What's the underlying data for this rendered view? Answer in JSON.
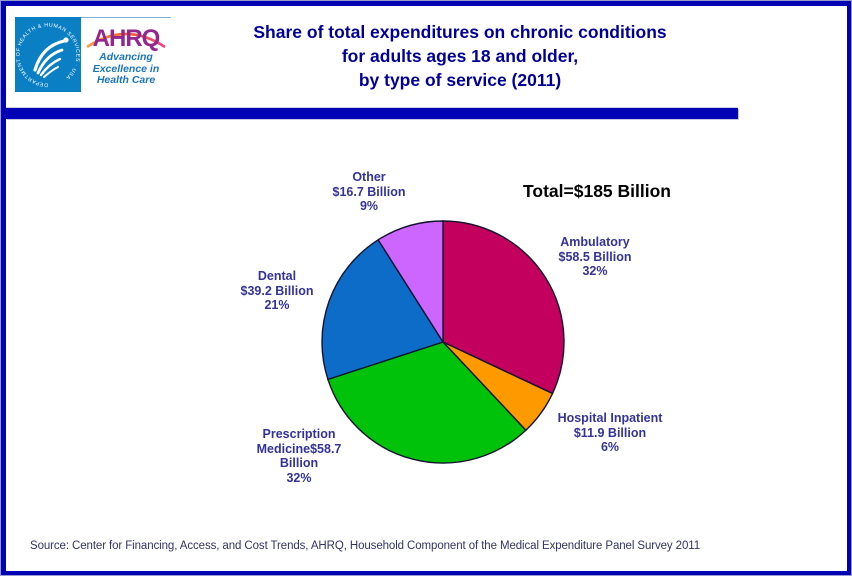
{
  "header": {
    "title_lines": [
      "Share of total expenditures on chronic conditions",
      "for adults ages 18 and older,",
      "by type of service (2011)"
    ],
    "logo": {
      "seal_text": "DEPARTMENT OF HEALTH & HUMAN SERVICES · USA",
      "acronym": "AHRQ",
      "tagline_lines": [
        "Advancing",
        "Excellence in",
        "Health Care"
      ]
    }
  },
  "chart_data": {
    "type": "pie",
    "title": "Share of total expenditures on chronic conditions for adults ages 18 and older, by type of service (2011)",
    "total_label": "Total=$185 Billion",
    "total_billions": 185,
    "start_angle": "top",
    "direction": "clockwise",
    "legend": "none (callout labels)",
    "slices": [
      {
        "label": "Ambulatory",
        "amount_label": "$58.5 Billion",
        "value_billions": 58.5,
        "percent": 32,
        "color": "#C4005E"
      },
      {
        "label": "Hospital Inpatient",
        "amount_label": "$11.9 Billion",
        "value_billions": 11.9,
        "percent": 6,
        "color": "#FF9900"
      },
      {
        "label": "Prescription Medicine",
        "amount_label": "$58.7 Billion",
        "value_billions": 58.7,
        "percent": 32,
        "color": "#00C20A"
      },
      {
        "label": "Dental",
        "amount_label": "$39.2 Billion",
        "value_billions": 39.2,
        "percent": 21,
        "color": "#0D6CC8"
      },
      {
        "label": "Other",
        "amount_label": "$16.7 Billion",
        "value_billions": 16.7,
        "percent": 9,
        "color": "#CC66FF"
      }
    ]
  },
  "callouts": {
    "other": {
      "lines": [
        "Other",
        "$16.7 Billion",
        "9%"
      ]
    },
    "ambulatory": {
      "lines": [
        "Ambulatory",
        "$58.5 Billion",
        "32%"
      ]
    },
    "dental": {
      "lines": [
        "Dental",
        "$39.2 Billion",
        "21%"
      ]
    },
    "hospital_inpatient": {
      "lines": [
        "Hospital Inpatient",
        "$11.9 Billion",
        "6%"
      ]
    },
    "prescription_medicine": {
      "lines": [
        "Prescription",
        "Medicine$58.7",
        "Billion",
        "32%"
      ]
    }
  },
  "footer": {
    "source": "Source: Center for Financing, Access, and Cost Trends, AHRQ, Household Component of the Medical Expenditure Panel Survey 2011"
  },
  "colors": {
    "accent_navy": "#0000B4",
    "title_text": "#000099",
    "label_text": "#333399",
    "total_text": "#000000",
    "source_text": "#333366",
    "hhs_blue": "#0B7FC4",
    "ahrq_purple": "#93278F",
    "tagline_blue": "#1B75BC",
    "slice_outline": "#141430"
  }
}
